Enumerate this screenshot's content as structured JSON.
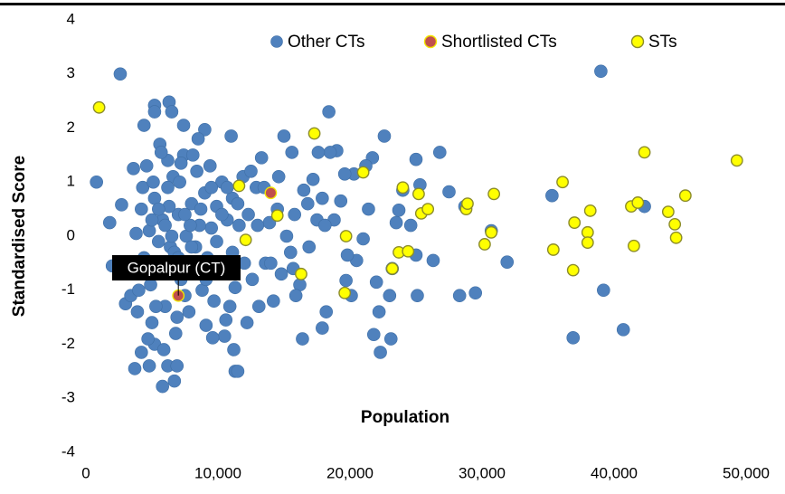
{
  "chart_data": {
    "type": "scatter",
    "xlabel": "Population",
    "ylabel": "Standardised Score",
    "xlim": [
      0,
      50000
    ],
    "ylim": [
      -4,
      4
    ],
    "xticks": [
      0,
      {
        "value": 10000,
        "label": "10,000"
      },
      {
        "value": 20000,
        "label": "20,000"
      },
      {
        "value": 30000,
        "label": "30,000"
      },
      {
        "value": 40000,
        "label": "40,000"
      },
      {
        "value": 50000,
        "label": "50,000"
      }
    ],
    "yticks": [
      -4,
      -3,
      -2,
      -1,
      0,
      1,
      2,
      3,
      4
    ],
    "grid": true,
    "legend": "upper right",
    "annotation": "Gopalpur (CT)",
    "series": [
      {
        "name": "Other CTs",
        "color": "#4f81bd",
        "x": [
          800,
          2600,
          1800,
          2000,
          2700,
          3000,
          3400,
          3700,
          4200,
          4800,
          5200,
          5800,
          6200,
          6700,
          6900,
          4400,
          5200,
          5200,
          6300,
          6500,
          7400,
          9000,
          11000,
          8500,
          10500,
          11200,
          11300,
          11500,
          9600,
          9100,
          39000,
          35300,
          42300,
          39200,
          36900,
          40700,
          31900,
          30700,
          29500,
          28300,
          28700,
          27500,
          26800,
          26300,
          25300,
          25000,
          25100,
          25000,
          24600,
          24000,
          23500,
          23700,
          23200,
          23000,
          23100,
          22600,
          22200,
          22300,
          22000,
          21800,
          21700,
          21400,
          21200,
          21000,
          20500,
          20300,
          20100,
          19800,
          19700,
          19600,
          19300,
          19000,
          18800,
          18400,
          18500,
          18200,
          17900,
          17900,
          17600,
          17200,
          16900,
          16500,
          16400,
          16200,
          15900,
          15800,
          15600,
          15500,
          15000,
          14800,
          14500,
          14200,
          13900,
          13600,
          13300,
          13100,
          12900,
          12600,
          12300,
          12200,
          11900,
          11600,
          11300,
          11100,
          10900,
          10700,
          10600,
          10300,
          10100,
          9900,
          9700,
          9500,
          9400,
          9200,
          9000,
          8800,
          8600,
          8400,
          8200,
          8000,
          7800,
          7600,
          7400,
          7200,
          7000,
          6800,
          6600,
          6400,
          6200,
          6000,
          5800,
          5600,
          5400,
          5200,
          5000,
          4800,
          4600,
          4400,
          4200,
          4000,
          3800,
          3600,
          3900,
          4300,
          4700,
          5100,
          5500,
          5900,
          6300,
          6700,
          7100,
          7500,
          7900,
          8300,
          8700,
          9100,
          9500,
          9900,
          10300,
          10700,
          11100,
          11500,
          12000,
          12500,
          13000,
          13500,
          14000,
          14600,
          15200,
          15700,
          16800,
          17500,
          18100,
          5000,
          5500,
          6000,
          6500,
          7000,
          7500,
          8000,
          8500,
          6200,
          7200,
          5700,
          8100,
          4900,
          6900,
          5300
        ],
        "values": [
          1.0,
          3.0,
          0.25,
          -0.55,
          0.58,
          -1.25,
          -1.1,
          -2.45,
          -2.15,
          -2.4,
          -2.0,
          -2.78,
          -2.4,
          -2.68,
          -2.4,
          2.05,
          2.42,
          2.3,
          2.48,
          2.3,
          2.05,
          1.97,
          1.85,
          1.8,
          -1.85,
          -2.1,
          -2.5,
          -2.5,
          -1.88,
          -1.65,
          3.05,
          0.75,
          0.55,
          -1.0,
          -1.88,
          -1.73,
          -0.48,
          0.1,
          -1.05,
          -1.1,
          0.55,
          0.82,
          1.55,
          -0.45,
          0.95,
          1.42,
          -1.1,
          -0.35,
          0.2,
          0.85,
          0.25,
          0.48,
          -0.6,
          -1.1,
          -1.9,
          1.85,
          -1.4,
          -2.15,
          -0.85,
          -1.82,
          1.45,
          0.5,
          1.3,
          -0.05,
          -0.45,
          1.15,
          -1.1,
          -0.35,
          -0.82,
          1.15,
          0.65,
          1.58,
          0.3,
          2.3,
          1.55,
          -1.4,
          -1.7,
          0.7,
          1.55,
          1.05,
          -0.2,
          0.85,
          -1.9,
          -0.9,
          -1.1,
          0.4,
          1.55,
          -0.3,
          1.85,
          -0.7,
          0.5,
          -1.2,
          0.25,
          -0.5,
          1.45,
          -1.3,
          0.9,
          -0.8,
          0.4,
          -1.6,
          1.1,
          0.2,
          -0.95,
          0.7,
          -1.3,
          0.3,
          -1.55,
          1.0,
          -0.6,
          0.55,
          -1.2,
          0.15,
          1.3,
          -0.4,
          0.8,
          -1.0,
          0.2,
          1.2,
          -0.5,
          0.6,
          -1.4,
          0.0,
          1.5,
          -0.8,
          0.4,
          -1.8,
          1.1,
          -0.2,
          0.9,
          -1.3,
          0.3,
          1.7,
          -0.7,
          0.7,
          -1.6,
          0.1,
          1.3,
          -0.4,
          0.5,
          -1.0,
          0.05,
          1.25,
          -1.4,
          0.9,
          -1.9,
          1.0,
          -0.1,
          -2.1,
          0.55,
          -0.3,
          1.0,
          -1.1,
          0.2,
          -0.2,
          0.5,
          -0.8,
          0.9,
          -0.1,
          0.4,
          0.9,
          -0.3,
          0.6,
          -0.5,
          1.2,
          0.2,
          0.9,
          -0.5,
          1.1,
          0.0,
          -0.6,
          0.6,
          0.3,
          0.2,
          0.3,
          0.5,
          0.2,
          0.0,
          -0.4,
          0.4,
          -0.2,
          -0.6,
          1.4,
          1.35,
          1.55,
          1.5,
          -0.9,
          -1.5,
          -1.3
        ]
      },
      {
        "name": "Shortlisted CTs",
        "color": "#c0504d",
        "x": [
          14000,
          7000
        ],
        "values": [
          0.8,
          -1.1
        ]
      },
      {
        "name": "STs",
        "color": "#ffff00",
        "x": [
          1000,
          17300,
          11600,
          12100,
          14500,
          16300,
          19600,
          19700,
          21000,
          23200,
          23700,
          24000,
          24400,
          25200,
          25400,
          25900,
          28800,
          28900,
          30200,
          30700,
          30900,
          35400,
          36100,
          36900,
          37000,
          38000,
          38000,
          38200,
          41300,
          41500,
          41800,
          42300,
          44100,
          44600,
          44700,
          45400,
          49300
        ],
        "values": [
          2.38,
          1.9,
          0.93,
          -0.07,
          0.38,
          -0.7,
          -1.05,
          0.0,
          1.18,
          -0.6,
          -0.3,
          0.9,
          -0.28,
          0.78,
          0.42,
          0.5,
          0.5,
          0.6,
          -0.15,
          0.07,
          0.78,
          -0.25,
          1.0,
          -0.63,
          0.25,
          0.07,
          -0.12,
          0.47,
          0.55,
          -0.18,
          0.62,
          1.55,
          0.45,
          0.22,
          -0.03,
          0.75,
          1.4
        ]
      }
    ]
  }
}
